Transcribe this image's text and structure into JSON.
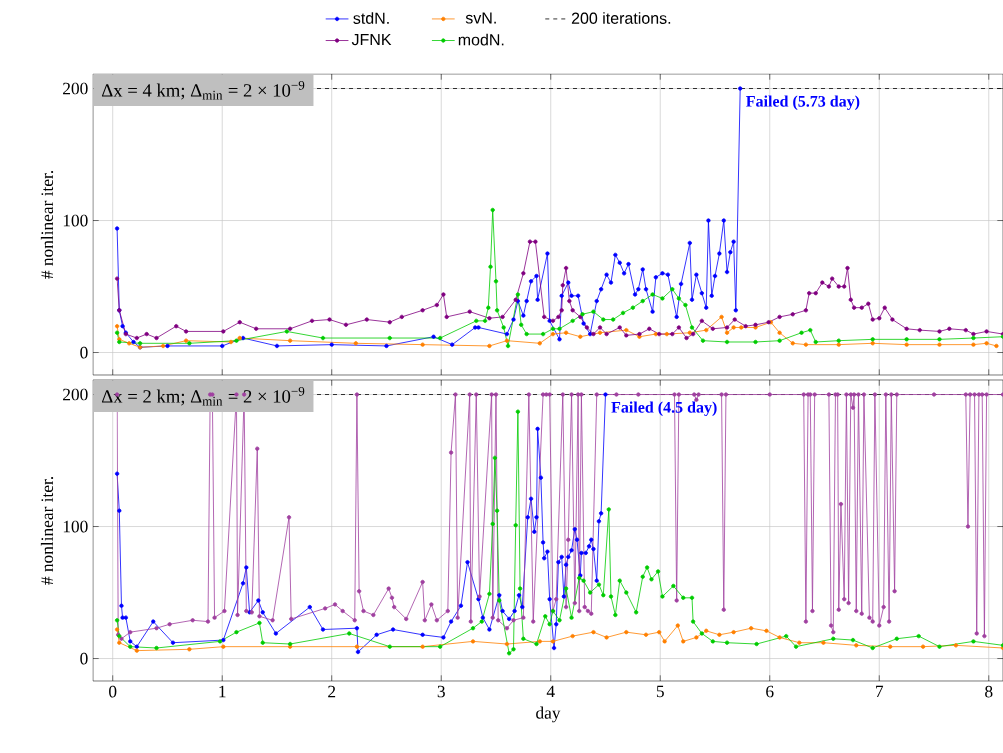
{
  "chart_data": [
    {
      "type": "line",
      "ylabel": "# nonlinear iter.",
      "xlim": [
        -0.18,
        8.13
      ],
      "ylim": [
        -17,
        211
      ],
      "xticks": [
        0,
        1,
        2,
        3,
        4,
        5,
        6,
        7,
        8
      ],
      "yticks": [
        0,
        100,
        200
      ],
      "tick_labels": "y",
      "grid": true,
      "legend": "top",
      "marker": "circle",
      "line_style": "solid",
      "annotations": [
        "Δx = 4 km; Δ$_{min}$ = 2 × 10$^{−9}$",
        {
          "text": "Failed (5.73 day)",
          "x": 5.73,
          "y": 200
        }
      ],
      "ref_lines": [
        {
          "axis": "y",
          "value": 200,
          "label": "200 iterations.",
          "color": "#000000",
          "line_style": "dashed"
        }
      ],
      "series": [
        {
          "name": "stdN.",
          "color": "#0000ff",
          "x": [
            0.04,
            0.06,
            0.09,
            0.12,
            0.19,
            0.25,
            0.5,
            1.0,
            1.19,
            1.5,
            2.0,
            2.5,
            2.93,
            3.1,
            3.31,
            3.34,
            3.6,
            3.66,
            3.7,
            3.75,
            3.78,
            3.82,
            3.87,
            3.88,
            3.97,
            3.99,
            4.08,
            4.1,
            4.16,
            4.19,
            4.25,
            4.3,
            4.36,
            4.42,
            4.46,
            4.51,
            4.55,
            4.59,
            4.63,
            4.67,
            4.71,
            4.77,
            4.8,
            4.84,
            4.87,
            4.93,
            4.96,
            5.02,
            5.07,
            5.15,
            5.19,
            5.27,
            5.29,
            5.33,
            5.38,
            5.42,
            5.44,
            5.47,
            5.5,
            5.54,
            5.58,
            5.61,
            5.64,
            5.67,
            5.69,
            5.73
          ],
          "values": [
            94,
            32,
            20,
            15,
            8,
            4,
            5,
            5,
            11,
            5,
            6,
            5,
            12,
            6,
            19,
            19,
            14,
            25,
            39,
            28,
            39,
            54,
            58,
            40,
            75,
            24,
            10,
            43,
            53,
            43,
            43,
            22,
            14,
            39,
            48,
            59,
            53,
            74,
            68,
            60,
            67,
            44,
            48,
            63,
            48,
            31,
            57,
            60,
            59,
            27,
            52,
            83,
            40,
            59,
            45,
            34,
            100,
            43,
            58,
            75,
            100,
            61,
            76,
            84,
            32,
            200
          ]
        },
        {
          "name": "svN.",
          "color": "#ff8000",
          "x": [
            0.04,
            0.06,
            0.15,
            0.25,
            0.46,
            0.67,
            1.08,
            1.16,
            1.62,
            2.22,
            2.83,
            3.44,
            3.6,
            3.9,
            4.02,
            4.14,
            4.27,
            4.45,
            4.69,
            4.81,
            4.96,
            5.06,
            5.27,
            5.42,
            5.56,
            5.61,
            5.67,
            5.74,
            5.87,
            6.01,
            6.09,
            6.21,
            6.33,
            6.63,
            6.94,
            7.25,
            7.55,
            7.86,
            7.98,
            8.07
          ],
          "values": [
            20,
            10,
            7,
            4,
            5,
            9,
            8,
            11,
            9,
            7,
            6,
            5,
            9,
            7,
            14,
            15,
            12,
            15,
            17,
            12,
            14,
            14,
            15,
            17,
            27,
            15,
            19,
            19,
            19,
            23,
            15,
            7,
            6,
            6,
            7,
            6,
            6,
            6,
            7,
            5
          ]
        },
        {
          "name": "JFNK",
          "color": "#800080",
          "x": [
            0.04,
            0.06,
            0.12,
            0.22,
            0.31,
            0.4,
            0.58,
            0.67,
            1.01,
            1.16,
            1.31,
            1.62,
            1.82,
            1.98,
            2.13,
            2.32,
            2.53,
            2.64,
            2.83,
            2.96,
            3.02,
            3.05,
            3.26,
            3.44,
            3.56,
            3.68,
            3.75,
            3.81,
            3.86,
            3.94,
            4.02,
            4.07,
            4.1,
            4.11,
            4.14,
            4.17,
            4.2,
            4.27,
            4.33,
            4.39,
            4.45,
            4.51,
            4.63,
            4.69,
            4.81,
            4.9,
            4.99,
            5.11,
            5.17,
            5.24,
            5.3,
            5.38,
            5.48,
            5.61,
            5.68,
            5.78,
            5.87,
            5.99,
            6.09,
            6.21,
            6.33,
            6.36,
            6.42,
            6.48,
            6.54,
            6.57,
            6.63,
            6.68,
            6.71,
            6.74,
            6.77,
            6.84,
            6.9,
            6.94,
            7.0,
            7.05,
            7.12,
            7.25,
            7.37,
            7.55,
            7.64,
            7.79,
            7.86,
            7.98,
            8.13
          ],
          "values": [
            56,
            32,
            14,
            11,
            14,
            11,
            20,
            16,
            16,
            23,
            18,
            18,
            24,
            25,
            21,
            25,
            23,
            27,
            32,
            36,
            44,
            27,
            31,
            26,
            27,
            40,
            60,
            84,
            84,
            27,
            24,
            27,
            32,
            51,
            64,
            39,
            32,
            27,
            19,
            14,
            19,
            14,
            19,
            13,
            14,
            18,
            14,
            14,
            19,
            11,
            14,
            24,
            18,
            19,
            25,
            20,
            21,
            23,
            27,
            29,
            32,
            45,
            45,
            53,
            50,
            56,
            50,
            50,
            64,
            40,
            34,
            34,
            37,
            25,
            26,
            34,
            25,
            18,
            17,
            16,
            18,
            17,
            14,
            16,
            14
          ]
        },
        {
          "name": "modN.",
          "color": "#00cc00",
          "x": [
            0.04,
            0.06,
            0.25,
            0.7,
            1.13,
            1.59,
            1.92,
            2.53,
            2.99,
            3.32,
            3.4,
            3.43,
            3.45,
            3.47,
            3.5,
            3.51,
            3.57,
            3.61,
            3.7,
            3.73,
            3.78,
            3.93,
            4.02,
            4.08,
            4.2,
            4.29,
            4.39,
            4.48,
            4.57,
            4.66,
            4.75,
            4.84,
            4.93,
            5.02,
            5.11,
            5.17,
            5.23,
            5.29,
            5.39,
            5.61,
            5.87,
            6.09,
            6.29,
            6.37,
            6.42,
            6.63,
            6.94,
            7.25,
            7.55,
            7.86,
            8.13
          ],
          "values": [
            15,
            8,
            7,
            7,
            9,
            16,
            11,
            11,
            11,
            24,
            24,
            34,
            65,
            108,
            54,
            32,
            19,
            5,
            44,
            21,
            14,
            14,
            18,
            18,
            24,
            29,
            31,
            25,
            25,
            30,
            34,
            39,
            44,
            41,
            48,
            41,
            36,
            19,
            9,
            8,
            8,
            9,
            15,
            17,
            8,
            9,
            10,
            10,
            10,
            11,
            12
          ]
        }
      ]
    },
    {
      "type": "line",
      "xlabel": "day",
      "ylabel": "# nonlinear iter.",
      "xlim": [
        -0.18,
        8.13
      ],
      "ylim": [
        -17,
        211
      ],
      "xticks": [
        0,
        1,
        2,
        3,
        4,
        5,
        6,
        7,
        8
      ],
      "yticks": [
        0,
        100,
        200
      ],
      "grid": true,
      "marker": "circle",
      "line_style": "solid",
      "annotations": [
        "Δx = 2 km; Δ$_{min}$ = 2 × 10$^{−9}$",
        {
          "text": "Failed (4.5 day)",
          "x": 4.5,
          "y": 200
        }
      ],
      "ref_lines": [
        {
          "axis": "y",
          "value": 200,
          "color": "#000000",
          "line_style": "dashed"
        }
      ],
      "series": [
        {
          "color": "#0000ff",
          "x": [
            0.04,
            0.06,
            0.08,
            0.09,
            0.12,
            0.16,
            0.22,
            0.37,
            0.55,
            1.01,
            1.19,
            1.22,
            1.25,
            1.33,
            1.37,
            1.49,
            1.8,
            1.92,
            2.23,
            2.24,
            2.41,
            2.56,
            2.83,
            3.02,
            3.09,
            3.18,
            3.24,
            3.34,
            3.38,
            3.44,
            3.53,
            3.56,
            3.62,
            3.67,
            3.71,
            3.74,
            3.79,
            3.82,
            3.85,
            3.87,
            3.88,
            3.91,
            3.93,
            3.94,
            3.97,
            3.99,
            4.03,
            4.05,
            4.07,
            4.1,
            4.12,
            4.14,
            4.16,
            4.19,
            4.22,
            4.24,
            4.27,
            4.28,
            4.32,
            4.35,
            4.37,
            4.39,
            4.42,
            4.44,
            4.46,
            4.5
          ],
          "values": [
            140,
            112,
            40,
            31,
            31,
            13,
            9,
            28,
            12,
            14,
            57,
            69,
            35,
            44,
            35,
            19,
            39,
            22,
            23,
            5,
            18,
            22,
            18,
            16,
            28,
            40,
            73,
            45,
            31,
            22,
            48,
            36,
            30,
            36,
            48,
            39,
            107,
            121,
            96,
            107,
            174,
            137,
            88,
            76,
            81,
            45,
            8,
            26,
            73,
            77,
            47,
            71,
            77,
            82,
            98,
            90,
            63,
            80,
            80,
            85,
            90,
            83,
            59,
            104,
            110,
            200
          ]
        },
        {
          "color": "#ff8000",
          "x": [
            0.04,
            0.06,
            0.22,
            0.7,
            1.01,
            1.62,
            2.23,
            2.83,
            3.29,
            3.6,
            3.9,
            4.02,
            4.2,
            4.39,
            4.51,
            4.69,
            4.87,
            4.99,
            5.04,
            5.16,
            5.21,
            5.33,
            5.42,
            5.54,
            5.67,
            5.83,
            5.97,
            6.09,
            6.27,
            6.49,
            6.79,
            7.1,
            7.4,
            7.7,
            8.13
          ],
          "values": [
            22,
            12,
            6,
            7,
            9,
            9,
            9,
            9,
            13,
            11,
            13,
            13,
            17,
            20,
            16,
            20,
            18,
            20,
            13,
            25,
            13,
            16,
            21,
            18,
            20,
            23,
            21,
            16,
            12,
            12,
            10,
            9,
            9,
            10,
            8
          ]
        },
        {
          "color": "#a040a0",
          "x": [
            0.04,
            0.05,
            0.08,
            0.16,
            0.4,
            0.52,
            0.73,
            0.87,
            0.89,
            0.91,
            0.93,
            1.02,
            1.13,
            1.14,
            1.2,
            1.22,
            1.27,
            1.32,
            1.34,
            1.46,
            1.61,
            1.63,
            1.94,
            2.03,
            2.1,
            2.21,
            2.23,
            2.25,
            2.29,
            2.38,
            2.52,
            2.55,
            2.57,
            2.68,
            2.83,
            2.85,
            2.91,
            2.96,
            3.06,
            3.09,
            3.13,
            3.15,
            3.26,
            3.27,
            3.32,
            3.35,
            3.46,
            3.47,
            3.5,
            3.52,
            3.6,
            3.66,
            3.75,
            3.8,
            3.84,
            3.93,
            3.96,
            3.99,
            4.02,
            4.05,
            4.11,
            4.14,
            4.16,
            4.19,
            4.22,
            4.25,
            4.26,
            4.28,
            4.31,
            4.34,
            4.37,
            4.42,
            4.6,
            4.8,
            5.13,
            5.15,
            5.17,
            5.31,
            5.33,
            5.35,
            5.56,
            5.58,
            5.6,
            6.0,
            6.31,
            6.33,
            6.35,
            6.37,
            6.39,
            6.41,
            6.54,
            6.56,
            6.58,
            6.6,
            6.62,
            6.63,
            6.65,
            6.68,
            6.7,
            6.72,
            6.74,
            6.76,
            6.77,
            6.79,
            6.81,
            6.84,
            6.86,
            6.91,
            6.94,
            6.96,
            7.0,
            7.04,
            7.06,
            7.09,
            7.11,
            7.14,
            7.16,
            7.5,
            7.79,
            7.81,
            7.83,
            7.87,
            7.89,
            7.91,
            7.94,
            7.96,
            7.98,
            8.13
          ],
          "values": [
            200,
            18,
            15,
            20,
            23,
            26,
            29,
            28,
            200,
            200,
            31,
            36,
            200,
            33,
            200,
            36,
            35,
            159,
            32,
            29,
            107,
            30,
            38,
            41,
            36,
            29,
            200,
            51,
            36,
            33,
            53,
            46,
            39,
            30,
            58,
            29,
            41,
            29,
            36,
            156,
            200,
            31,
            200,
            28,
            200,
            47,
            200,
            31,
            200,
            29,
            23,
            29,
            31,
            200,
            28,
            200,
            200,
            200,
            36,
            45,
            200,
            39,
            90,
            200,
            42,
            200,
            36,
            200,
            39,
            36,
            34,
            200,
            200,
            200,
            200,
            44,
            200,
            200,
            196,
            200,
            200,
            37,
            200,
            200,
            200,
            28,
            200,
            200,
            36,
            200,
            200,
            25,
            20,
            200,
            200,
            37,
            117,
            45,
            200,
            42,
            200,
            190,
            200,
            36,
            200,
            34,
            200,
            31,
            28,
            200,
            25,
            39,
            200,
            28,
            200,
            51,
            200,
            200,
            200,
            100,
            200,
            200,
            19,
            200,
            200,
            17,
            200,
            200
          ]
        },
        {
          "color": "#00cc00",
          "x": [
            0.04,
            0.06,
            0.16,
            0.4,
            0.98,
            1.13,
            1.34,
            1.37,
            1.62,
            2.16,
            2.53,
            2.99,
            3.29,
            3.37,
            3.44,
            3.47,
            3.49,
            3.51,
            3.53,
            3.62,
            3.66,
            3.68,
            3.7,
            3.72,
            3.75,
            3.87,
            3.95,
            3.99,
            4.02,
            4.08,
            4.14,
            4.19,
            4.26,
            4.3,
            4.36,
            4.44,
            4.48,
            4.53,
            4.55,
            4.59,
            4.63,
            4.69,
            4.78,
            4.84,
            4.88,
            4.92,
            4.98,
            5.02,
            5.12,
            5.21,
            5.29,
            5.3,
            5.38,
            5.48,
            5.61,
            5.88,
            6.15,
            6.24,
            6.58,
            6.76,
            6.94,
            7.16,
            7.36,
            7.55,
            7.86,
            8.13
          ],
          "values": [
            29,
            17,
            9,
            8,
            13,
            20,
            27,
            12,
            11,
            19,
            9,
            9,
            23,
            28,
            49,
            102,
            152,
            112,
            44,
            4,
            7,
            101,
            187,
            53,
            15,
            11,
            32,
            26,
            36,
            29,
            53,
            31,
            61,
            59,
            50,
            56,
            48,
            113,
            47,
            33,
            59,
            50,
            35,
            62,
            69,
            60,
            66,
            47,
            55,
            46,
            46,
            28,
            19,
            13,
            12,
            11,
            17,
            9,
            15,
            14,
            8,
            15,
            17,
            9,
            13,
            10
          ]
        }
      ]
    }
  ]
}
